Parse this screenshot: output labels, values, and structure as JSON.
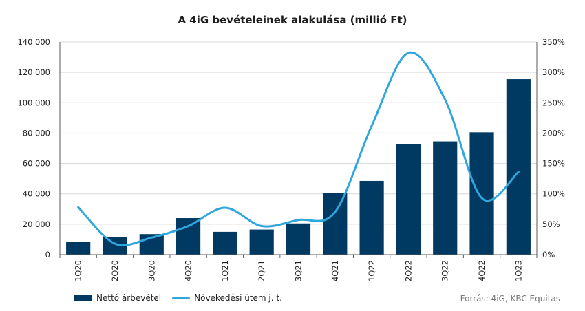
{
  "title": "A 4iG bevételeinek alakulása (millió Ft)",
  "source": "Forrás: 4iG, KBC Equitas",
  "colors": {
    "bar": "#003a63",
    "line": "#2fa6dc",
    "grid": "#d9d9d9",
    "axis": "#595959"
  },
  "chart_data": {
    "type": "bar+line",
    "categories": [
      "1Q20",
      "2Q20",
      "3Q20",
      "4Q20",
      "1Q21",
      "2Q21",
      "3Q21",
      "4Q21",
      "1Q22",
      "2Q22",
      "3Q22",
      "4Q22",
      "1Q23"
    ],
    "series": [
      {
        "name": "Nettó árbevétel",
        "type": "bar",
        "axis": "left",
        "values": [
          8500,
          11500,
          13500,
          24000,
          15000,
          16500,
          20500,
          40500,
          48500,
          72500,
          74500,
          80500,
          115500
        ]
      },
      {
        "name": "Növekedési ütem j. t.",
        "type": "line",
        "axis": "right",
        "values": [
          78,
          18,
          28,
          47,
          77,
          47,
          57,
          70,
          212,
          332,
          255,
          93,
          136
        ]
      }
    ],
    "y_left": {
      "min": 0,
      "max": 140000,
      "step": 20000,
      "ticks": [
        "0",
        "20 000",
        "40 000",
        "60 000",
        "80 000",
        "100 000",
        "120 000",
        "140 000"
      ]
    },
    "y_right": {
      "min": 0,
      "max": 350,
      "step": 50,
      "ticks": [
        "0%",
        "50%",
        "100%",
        "150%",
        "200%",
        "250%",
        "300%",
        "350%"
      ]
    },
    "grid": true,
    "legend_position": "bottom-left"
  }
}
